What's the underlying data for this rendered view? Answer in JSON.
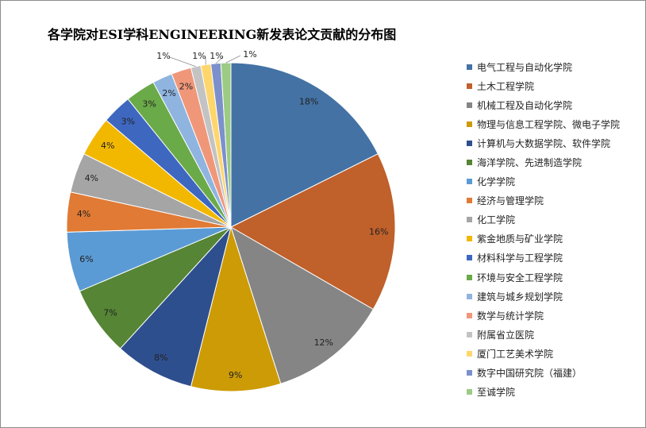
{
  "chart_data": {
    "type": "pie",
    "title": "各学院对ESI学科ENGINEERING新发表论文贡献的分布图",
    "legend_position": "right",
    "categories": [
      "电气工程与自动化学院",
      "土木工程学院",
      "机械工程及自动化学院",
      "物理与信息工程学院、微电子学院",
      "计算机与大数据学院、软件学院",
      "海洋学院、先进制造学院",
      "化学学院",
      "经济与管理学院",
      "化工学院",
      "紫金地质与矿业学院",
      "材料科学与工程学院",
      "环境与安全工程学院",
      "建筑与城乡规划学院",
      "数学与统计学院",
      "附属省立医院",
      "厦门工艺美术学院",
      "数字中国研究院（福建）",
      "至诚学院"
    ],
    "values": [
      18,
      16,
      12,
      9,
      8,
      7,
      6,
      4,
      4,
      4,
      3,
      3,
      2,
      2,
      1,
      1,
      1,
      1
    ],
    "labels": [
      "18%",
      "16%",
      "12%",
      "9%",
      "8%",
      "7%",
      "6%",
      "4%",
      "4%",
      "4%",
      "3%",
      "3%",
      "2%",
      "2%",
      "1%",
      "1%",
      "1%",
      "1%"
    ],
    "colors": [
      "#4472a4",
      "#c0602b",
      "#858585",
      "#cc9b06",
      "#2e4f8e",
      "#558535",
      "#5b9bd5",
      "#e07a35",
      "#a5a5a5",
      "#f2b800",
      "#3e67c0",
      "#6aaa48",
      "#8fb4e0",
      "#f0977a",
      "#c3c3c3",
      "#ffd66b",
      "#7c90cc",
      "#9ccb83"
    ]
  }
}
